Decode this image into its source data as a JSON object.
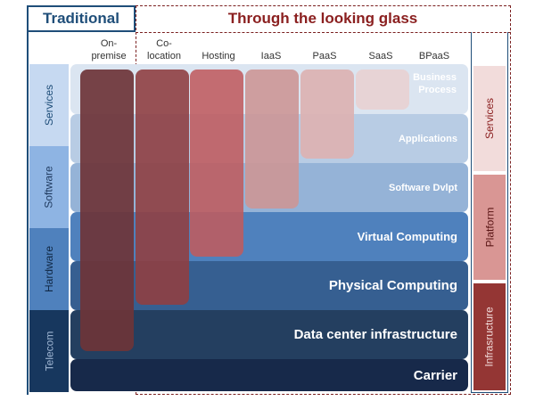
{
  "header": {
    "traditional": "Traditional",
    "looking_glass": "Through the looking glass"
  },
  "columns": {
    "onpremise": "On-\npremise",
    "colocation": "Co-\nlocation",
    "hosting": "Hosting",
    "iaas": "IaaS",
    "paas": "PaaS",
    "saas": "SaaS",
    "bpaas": "BPaaS"
  },
  "layers": {
    "business_process": "Business\nProcess",
    "applications": "Applications",
    "software_dvlpt": "Software Dvlpt",
    "virtual_computing": "Virtual Computing",
    "physical_computing": "Physical Computing",
    "data_center": "Data center infrastructure",
    "carrier": "Carrier"
  },
  "left_tiers": {
    "services": "Services",
    "software": "Software",
    "hardware": "Hardware",
    "telecom": "Telecom"
  },
  "right_tiers": {
    "services": "Services",
    "platform": "Platform",
    "infrastructure": "Infrasructure"
  },
  "colors": {
    "traditional_accent": "#1f4e79",
    "glass_accent": "#8b2020",
    "onpremise_bar": "#6e3438",
    "colocation_bar": "#8f3f42",
    "hosting_bar": "#bf5b5e",
    "iaas_bar": "#cc9696",
    "paas_bar": "#dcb2b2",
    "saas_bar": "#e8d2d3"
  }
}
